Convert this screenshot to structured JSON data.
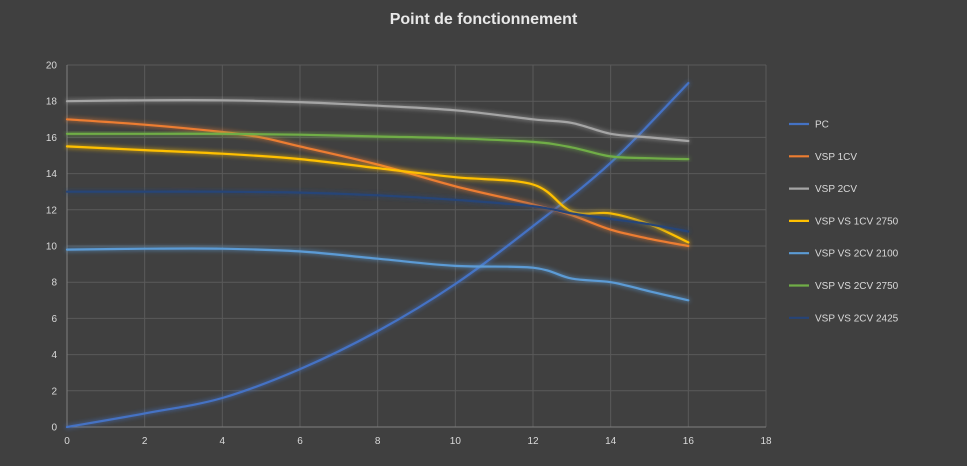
{
  "chart_data": {
    "type": "line",
    "title": "Point de fonctionnement",
    "xlabel": "",
    "ylabel": "",
    "xlim": [
      0,
      18
    ],
    "ylim": [
      0,
      20
    ],
    "xticks": [
      0,
      2,
      4,
      6,
      8,
      10,
      12,
      14,
      16,
      18
    ],
    "yticks": [
      0,
      2,
      4,
      6,
      8,
      10,
      12,
      14,
      16,
      18,
      20
    ],
    "grid": true,
    "legend_position": "right",
    "series": [
      {
        "name": "PC",
        "color": "#4472c4",
        "points": [
          [
            0,
            0
          ],
          [
            2,
            0.75
          ],
          [
            4,
            1.6
          ],
          [
            6,
            3.2
          ],
          [
            8,
            5.3
          ],
          [
            10,
            7.9
          ],
          [
            12,
            11.1
          ],
          [
            14,
            14.6
          ],
          [
            16,
            19.0
          ]
        ]
      },
      {
        "name": "VSP 1CV",
        "color": "#ed7d31",
        "points": [
          [
            0,
            17
          ],
          [
            2,
            16.7
          ],
          [
            4,
            16.3
          ],
          [
            5,
            16.0
          ],
          [
            6,
            15.5
          ],
          [
            8,
            14.5
          ],
          [
            10,
            13.3
          ],
          [
            12,
            12.3
          ],
          [
            13,
            11.7
          ],
          [
            14,
            10.9
          ],
          [
            15,
            10.4
          ],
          [
            16,
            10.0
          ]
        ]
      },
      {
        "name": "VSP 2CV",
        "color": "#a5a5a5",
        "points": [
          [
            0,
            18
          ],
          [
            2,
            18.05
          ],
          [
            4,
            18.05
          ],
          [
            6,
            17.95
          ],
          [
            8,
            17.75
          ],
          [
            10,
            17.5
          ],
          [
            12,
            17.0
          ],
          [
            13,
            16.8
          ],
          [
            14,
            16.2
          ],
          [
            15,
            16.0
          ],
          [
            16,
            15.8
          ]
        ]
      },
      {
        "name": "VSP VS 1CV 2750",
        "color": "#ffc000",
        "points": [
          [
            0,
            15.5
          ],
          [
            2,
            15.3
          ],
          [
            4,
            15.1
          ],
          [
            6,
            14.8
          ],
          [
            8,
            14.3
          ],
          [
            10,
            13.8
          ],
          [
            12,
            13.4
          ],
          [
            13,
            11.9
          ],
          [
            14,
            11.8
          ],
          [
            15,
            11.2
          ],
          [
            16,
            10.2
          ]
        ]
      },
      {
        "name": "VSP VS 2CV 2100",
        "color": "#5b9bd5",
        "points": [
          [
            0,
            9.8
          ],
          [
            2,
            9.85
          ],
          [
            4,
            9.85
          ],
          [
            6,
            9.7
          ],
          [
            8,
            9.3
          ],
          [
            10,
            8.9
          ],
          [
            12,
            8.8
          ],
          [
            13,
            8.2
          ],
          [
            14,
            8.0
          ],
          [
            15,
            7.5
          ],
          [
            16,
            7.0
          ]
        ]
      },
      {
        "name": "VSP VS 2CV 2750",
        "color": "#70ad47",
        "points": [
          [
            0,
            16.2
          ],
          [
            2,
            16.2
          ],
          [
            4,
            16.2
          ],
          [
            6,
            16.15
          ],
          [
            8,
            16.05
          ],
          [
            10,
            15.95
          ],
          [
            12,
            15.75
          ],
          [
            13,
            15.45
          ],
          [
            14,
            14.95
          ],
          [
            15,
            14.85
          ],
          [
            16,
            14.8
          ]
        ]
      },
      {
        "name": "VSP VS 2CV 2425",
        "color": "#264478",
        "points": [
          [
            0,
            13
          ],
          [
            2,
            13
          ],
          [
            4,
            13
          ],
          [
            6,
            12.95
          ],
          [
            8,
            12.8
          ],
          [
            10,
            12.55
          ],
          [
            12,
            12.2
          ],
          [
            13,
            11.8
          ],
          [
            14,
            11.5
          ],
          [
            15,
            11.2
          ],
          [
            16,
            10.8
          ]
        ]
      }
    ]
  }
}
